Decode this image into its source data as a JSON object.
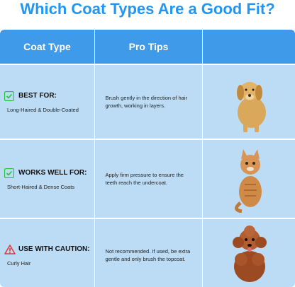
{
  "title": "Which Coat Types Are a Good Fit?",
  "headers": [
    "Coat Type",
    "Pro Tips",
    ""
  ],
  "rows": [
    {
      "status": "BEST FOR:",
      "status_icon": "paw-check-icon",
      "status_color": "#27c23d",
      "coat": "Long-Haired & Double-Coated",
      "tip": "Brush gently in the direction of hair growth, working in layers.",
      "image": "golden-retriever"
    },
    {
      "status": "WORKS WELL FOR:",
      "status_icon": "paw-check-icon",
      "status_color": "#27c23d",
      "coat": "Short-Haired & Dense Coats",
      "tip": "Apply firm pressure to ensure the teeth reach the undercoat.",
      "image": "tabby-cat"
    },
    {
      "status": "USE WITH CAUTION:",
      "status_icon": "warning-triangle-icon",
      "status_color": "#e53935",
      "coat": "Curly Hair",
      "tip": "Not recommended. If used, be extra gentle and only brush the topcoat.",
      "image": "poodle"
    }
  ]
}
